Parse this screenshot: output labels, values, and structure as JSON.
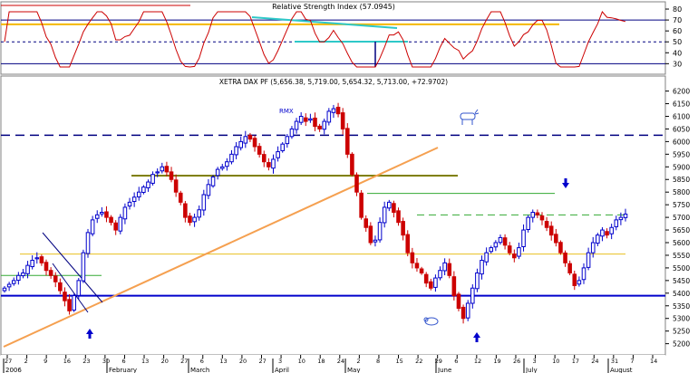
{
  "rsi_panel": {
    "title": "Relative Strength Index (57.0945)",
    "y_ticks": [
      80,
      70,
      60,
      50,
      40,
      30
    ],
    "ylim": [
      22,
      85
    ],
    "levels": {
      "upper": 70,
      "middle": 50,
      "lower": 30
    },
    "orange_level": 66,
    "colors": {
      "line": "#cc0000",
      "levels": "#000080",
      "orange": "#f5b800",
      "cyan": "#2ec8c8",
      "red_top": "#cc0000"
    }
  },
  "price_panel": {
    "title": "XETRA DAX PF (5,656.38, 5,719.00, 5,654.32, 5,713.00, +72.9702)",
    "ylim": [
      5170,
      6220
    ],
    "y_ticks": [
      6200,
      6150,
      6100,
      6050,
      6000,
      5950,
      5900,
      5850,
      5800,
      5750,
      5700,
      5650,
      5600,
      5550,
      5500,
      5450,
      5400,
      5350,
      5300,
      5250,
      5200
    ],
    "annotation_rmx": "RMX",
    "colors": {
      "up": "#0000cc",
      "down": "#cc0000",
      "support": "#0000cc",
      "trend_orange": "#f5a050",
      "olive": "#808000",
      "green": "#33aa33",
      "yellow": "#e8c020",
      "dashed": "#000080",
      "arrow": "#0000cc"
    }
  },
  "x_axis": {
    "day_labels": [
      "27",
      "2",
      "9",
      "16",
      "23",
      "30",
      "6",
      "13",
      "20",
      "27",
      "6",
      "13",
      "20",
      "27",
      "3",
      "10",
      "18",
      "24",
      "2",
      "8",
      "15",
      "22",
      "29",
      "6",
      "12",
      "19",
      "26",
      "3",
      "10",
      "17",
      "24",
      "31",
      "7",
      "14"
    ],
    "month_labels": [
      "2006",
      "February",
      "March",
      "April",
      "May",
      "June",
      "July",
      "August"
    ]
  },
  "chart_data": {
    "type": "candlestick",
    "title": "XETRA DAX PF",
    "last_bar": {
      "open": 5656.38,
      "high": 5719.0,
      "low": 5654.32,
      "close": 5713.0,
      "change": 72.9702
    },
    "approx_closes": [
      5420,
      5435,
      5450,
      5470,
      5480,
      5510,
      5530,
      5540,
      5520,
      5490,
      5470,
      5445,
      5410,
      5370,
      5330,
      5390,
      5450,
      5560,
      5640,
      5690,
      5710,
      5720,
      5700,
      5680,
      5650,
      5700,
      5740,
      5760,
      5780,
      5800,
      5820,
      5840,
      5870,
      5880,
      5900,
      5880,
      5850,
      5800,
      5760,
      5700,
      5680,
      5700,
      5730,
      5790,
      5830,
      5860,
      5890,
      5900,
      5920,
      5950,
      5980,
      6000,
      6020,
      6010,
      5980,
      5950,
      5920,
      5900,
      5930,
      5960,
      5990,
      6020,
      6050,
      6080,
      6100,
      6080,
      6090,
      6060,
      6050,
      6080,
      6120,
      6130,
      6110,
      6050,
      5950,
      5870,
      5800,
      5700,
      5660,
      5600,
      5610,
      5680,
      5740,
      5760,
      5720,
      5680,
      5630,
      5560,
      5520,
      5500,
      5480,
      5440,
      5420,
      5460,
      5490,
      5520,
      5470,
      5390,
      5340,
      5300,
      5360,
      5420,
      5480,
      5530,
      5560,
      5580,
      5600,
      5620,
      5590,
      5560,
      5540,
      5580,
      5650,
      5700,
      5720,
      5710,
      5690,
      5660,
      5630,
      5600,
      5560,
      5520,
      5480,
      5430,
      5450,
      5500,
      5560,
      5600,
      5630,
      5650,
      5630,
      5660,
      5690,
      5700,
      5713
    ],
    "levels": {
      "support": 5390,
      "resistance_dashed": 6025,
      "olive_line": 5865,
      "green_line": 5795,
      "green_dashed": 5710,
      "yellow_line": 5555,
      "green_left": 5470
    },
    "rsi_current": 57.0945
  }
}
